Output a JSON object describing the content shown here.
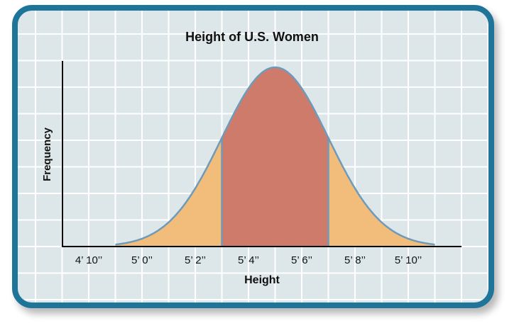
{
  "chart_data": {
    "type": "area",
    "title": "Height of U.S. Women",
    "xlabel": "Height",
    "ylabel": "Frequency",
    "distribution": "normal",
    "mean_inches": 65,
    "sd_inches": 2,
    "xlim_inches": [
      57,
      72
    ],
    "x_tick_values_inches": [
      58,
      60,
      62,
      64,
      66,
      68,
      70
    ],
    "x_tick_labels": [
      "4’ 10’’",
      "5’ 0’’",
      "5’ 2’’",
      "5’ 4’’",
      "5’ 6’’",
      "5’ 8’’",
      "5’ 10’’"
    ],
    "highlight_range_inches": [
      63,
      67
    ],
    "tail_range_inches": [
      59,
      71
    ],
    "grid": true,
    "colors": {
      "highlight": "#cf7b6c",
      "tails": "#f2bd7a",
      "curve": "#6f9ab8",
      "background": "#dde7ea",
      "grid": "#ffffff",
      "frame": "#1f7599"
    }
  }
}
